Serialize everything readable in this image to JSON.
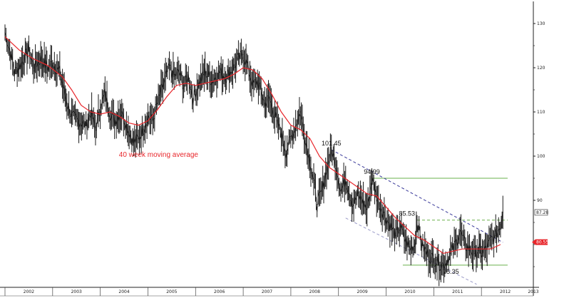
{
  "chart_data": {
    "type": "line",
    "title": "",
    "xlabel": "",
    "ylabel": "",
    "x_ticks": [
      "2002",
      "2003",
      "2004",
      "2005",
      "2006",
      "2007",
      "2008",
      "2009",
      "2010",
      "2011",
      "2012",
      "2013"
    ],
    "y_ticks": [
      130,
      120,
      110,
      100,
      90
    ],
    "ylim": [
      70,
      135
    ],
    "xlim": [
      2002,
      2013
    ],
    "grid": false,
    "legend": "none",
    "series": [
      {
        "name": "",
        "kind": "weekly-price",
        "color": "#1a1a1a",
        "points": [
          [
            2002.0,
            128
          ],
          [
            2002.1,
            124
          ],
          [
            2002.2,
            119
          ],
          [
            2002.35,
            121
          ],
          [
            2002.5,
            124
          ],
          [
            2002.6,
            120
          ],
          [
            2002.75,
            122
          ],
          [
            2002.9,
            120
          ],
          [
            2003.0,
            121
          ],
          [
            2003.15,
            119
          ],
          [
            2003.3,
            112
          ],
          [
            2003.4,
            109
          ],
          [
            2003.55,
            108
          ],
          [
            2003.7,
            107
          ],
          [
            2003.8,
            110
          ],
          [
            2003.9,
            106
          ],
          [
            2004.0,
            111
          ],
          [
            2004.1,
            114
          ],
          [
            2004.2,
            110
          ],
          [
            2004.3,
            108
          ],
          [
            2004.45,
            110
          ],
          [
            2004.55,
            107
          ],
          [
            2004.7,
            103
          ],
          [
            2004.8,
            104
          ],
          [
            2004.9,
            106
          ],
          [
            2005.0,
            109
          ],
          [
            2005.1,
            108
          ],
          [
            2005.2,
            112
          ],
          [
            2005.35,
            117
          ],
          [
            2005.45,
            120
          ],
          [
            2005.55,
            118
          ],
          [
            2005.65,
            119
          ],
          [
            2005.75,
            116
          ],
          [
            2005.85,
            118
          ],
          [
            2005.95,
            113
          ],
          [
            2006.05,
            116
          ],
          [
            2006.2,
            119
          ],
          [
            2006.35,
            117
          ],
          [
            2006.5,
            119
          ],
          [
            2006.65,
            118
          ],
          [
            2006.8,
            120
          ],
          [
            2006.9,
            122
          ],
          [
            2007.0,
            123
          ],
          [
            2007.1,
            120
          ],
          [
            2007.2,
            116
          ],
          [
            2007.3,
            117
          ],
          [
            2007.45,
            112
          ],
          [
            2007.55,
            113
          ],
          [
            2007.7,
            108
          ],
          [
            2007.8,
            105
          ],
          [
            2007.9,
            101
          ],
          [
            2008.0,
            104
          ],
          [
            2008.1,
            107
          ],
          [
            2008.2,
            110
          ],
          [
            2008.3,
            104
          ],
          [
            2008.4,
            99
          ],
          [
            2008.5,
            93
          ],
          [
            2008.55,
            89
          ],
          [
            2008.65,
            92
          ],
          [
            2008.75,
            97
          ],
          [
            2008.85,
            101.45
          ],
          [
            2008.95,
            98
          ],
          [
            2009.05,
            92
          ],
          [
            2009.15,
            95
          ],
          [
            2009.3,
            89
          ],
          [
            2009.4,
            91
          ],
          [
            2009.5,
            90
          ],
          [
            2009.6,
            88
          ],
          [
            2009.7,
            94.99
          ],
          [
            2009.8,
            91
          ],
          [
            2009.9,
            88
          ],
          [
            2010.0,
            86
          ],
          [
            2010.1,
            84
          ],
          [
            2010.2,
            82
          ],
          [
            2010.3,
            84
          ],
          [
            2010.4,
            81
          ],
          [
            2010.5,
            79
          ],
          [
            2010.6,
            80
          ],
          [
            2010.65,
            85.53
          ],
          [
            2010.75,
            80
          ],
          [
            2010.85,
            78
          ],
          [
            2010.95,
            77
          ],
          [
            2011.05,
            76.5
          ],
          [
            2011.15,
            75.35
          ],
          [
            2011.25,
            76
          ],
          [
            2011.35,
            78
          ],
          [
            2011.45,
            80
          ],
          [
            2011.55,
            83
          ],
          [
            2011.65,
            80
          ],
          [
            2011.75,
            79
          ],
          [
            2011.85,
            78
          ],
          [
            2011.95,
            79
          ],
          [
            2012.0,
            78
          ],
          [
            2012.1,
            79
          ],
          [
            2012.2,
            81
          ],
          [
            2012.3,
            82
          ],
          [
            2012.4,
            84.5
          ],
          [
            2012.45,
            87.28
          ]
        ]
      },
      {
        "name": "40 week moving average",
        "kind": "moving-average",
        "color": "#e8262b",
        "points": [
          [
            2002.0,
            127
          ],
          [
            2002.3,
            124
          ],
          [
            2002.6,
            122
          ],
          [
            2002.9,
            120.5
          ],
          [
            2003.2,
            118
          ],
          [
            2003.4,
            115
          ],
          [
            2003.6,
            111.5
          ],
          [
            2003.8,
            110
          ],
          [
            2004.0,
            109.5
          ],
          [
            2004.2,
            110
          ],
          [
            2004.4,
            109
          ],
          [
            2004.6,
            107.5
          ],
          [
            2004.8,
            107
          ],
          [
            2005.0,
            108
          ],
          [
            2005.2,
            110.5
          ],
          [
            2005.4,
            113.5
          ],
          [
            2005.6,
            116
          ],
          [
            2005.8,
            116.5
          ],
          [
            2006.0,
            116
          ],
          [
            2006.2,
            116.5
          ],
          [
            2006.4,
            117
          ],
          [
            2006.6,
            117.5
          ],
          [
            2006.8,
            118.5
          ],
          [
            2007.0,
            120
          ],
          [
            2007.2,
            119.5
          ],
          [
            2007.4,
            117.5
          ],
          [
            2007.6,
            114
          ],
          [
            2007.8,
            110
          ],
          [
            2008.0,
            107
          ],
          [
            2008.2,
            106
          ],
          [
            2008.4,
            104
          ],
          [
            2008.6,
            100
          ],
          [
            2008.8,
            97.5
          ],
          [
            2009.0,
            96
          ],
          [
            2009.2,
            94.5
          ],
          [
            2009.4,
            93
          ],
          [
            2009.6,
            91.5
          ],
          [
            2009.8,
            91
          ],
          [
            2010.0,
            88.5
          ],
          [
            2010.2,
            86
          ],
          [
            2010.4,
            84
          ],
          [
            2010.6,
            82
          ],
          [
            2010.8,
            81
          ],
          [
            2011.0,
            79.5
          ],
          [
            2011.2,
            78
          ],
          [
            2011.4,
            78.5
          ],
          [
            2011.6,
            79
          ],
          [
            2011.8,
            79
          ],
          [
            2012.0,
            79
          ],
          [
            2012.2,
            79
          ],
          [
            2012.4,
            80
          ]
        ]
      }
    ],
    "annotations": [
      {
        "text": "101.45",
        "x": 2008.85,
        "y": 101.45,
        "place": "above"
      },
      {
        "text": "94.99",
        "x": 2009.7,
        "y": 94.99,
        "place": "above"
      },
      {
        "text": "85.53",
        "x": 2010.65,
        "y": 85.53,
        "place": "above-left"
      },
      {
        "text": "75.35",
        "x": 2011.15,
        "y": 75.35,
        "place": "below"
      },
      {
        "text": "40 week moving average",
        "x": 2004.9,
        "y": 99.8,
        "place": "label"
      }
    ],
    "horizontal_lines": [
      {
        "y": 94.99,
        "x_from": 2009.7,
        "x_to": 2012.55,
        "style": "solid",
        "color": "#6ab04c"
      },
      {
        "y": 85.53,
        "x_from": 2010.65,
        "x_to": 2012.55,
        "style": "dashed",
        "color": "#6ab04c"
      },
      {
        "y": 75.35,
        "x_from": 2010.35,
        "x_to": 2012.55,
        "style": "solid",
        "color": "#6ab04c"
      }
    ],
    "trend_lines": [
      {
        "from": [
          2008.85,
          101.45
        ],
        "to": [
          2012.45,
          80.5
        ],
        "style": "dashed",
        "color": "#3a3a9a"
      },
      {
        "from": [
          2009.15,
          86
        ],
        "to": [
          2011.9,
          71
        ],
        "style": "dashed",
        "color": "#9a9ac8"
      }
    ],
    "price_tags": [
      {
        "text": "87.28",
        "y": 87.28,
        "style": "outline"
      },
      {
        "text": "80.55",
        "y": 80.55,
        "style": "filled-red"
      }
    ]
  }
}
